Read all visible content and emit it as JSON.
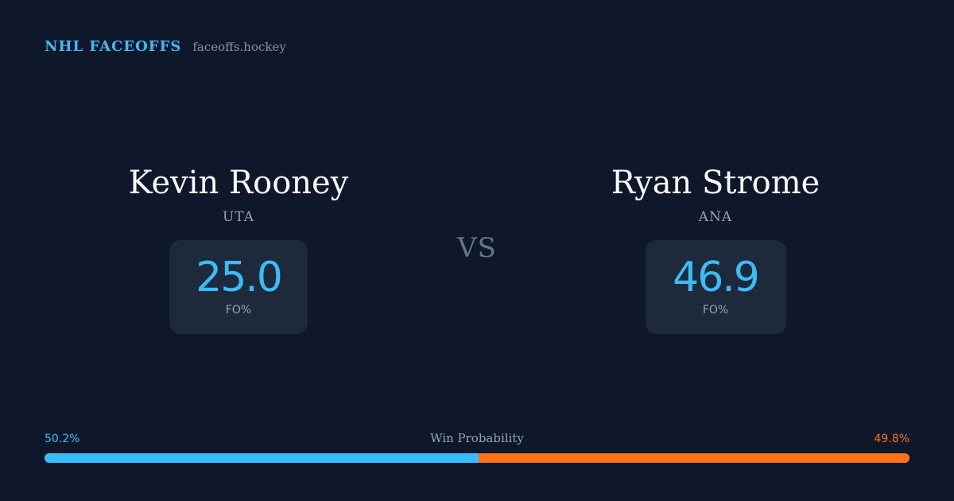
{
  "brand": {
    "name": "NHL FACEOFFS",
    "domain": "faceoffs.hockey"
  },
  "players": [
    {
      "name": "Kevin Rooney",
      "team": "UTA",
      "stat_value": "25.0",
      "stat_label": "FO%"
    },
    {
      "name": "Ryan Strome",
      "team": "ANA",
      "stat_value": "46.9",
      "stat_label": "FO%"
    }
  ],
  "vs_label": "VS",
  "win_probability": {
    "title": "Win Probability",
    "left_label": "50.2%",
    "right_label": "49.8%",
    "left_value": 50.2,
    "right_value": 49.8
  },
  "colors": {
    "background": "#0f172a",
    "accent_left": "#38bdf8",
    "accent_right": "#f97316",
    "card": "#1e293b"
  }
}
